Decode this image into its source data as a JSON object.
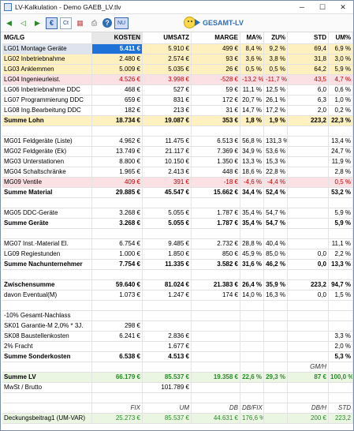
{
  "window": {
    "title": "LV-Kalkulation - Demo GAEB_LV.tlv",
    "minimize": "─",
    "maximize": "☐",
    "close": "✕"
  },
  "toolbar": {
    "nu_label": "NU",
    "gesamt_label": "GESAMT-LV",
    "icons": [
      "back-icon",
      "back2-icon",
      "forward-icon",
      "euro-icon",
      "ct-icon",
      "chart-icon",
      "print-icon",
      "help-icon",
      "nu-icon"
    ]
  },
  "header": [
    "MG/LG",
    "KOSTEN",
    "UMSATZ",
    "MARGE",
    "MA%",
    "ZU%",
    "STD",
    "UM%"
  ],
  "rows": [
    {
      "cls": "",
      "cells": [
        "LG01 Montage Geräte",
        "5.411 €",
        "5.910 €",
        "499 €",
        "8,4 %",
        "9,2 %",
        "69,4",
        "6,9 %"
      ],
      "sel": true
    },
    {
      "cls": "hi",
      "cells": [
        "LG02 Inbetriebnahme",
        "2.480 €",
        "2.574 €",
        "93 €",
        "3,6 %",
        "3,8 %",
        "31,8",
        "3,0 %"
      ]
    },
    {
      "cls": "hi",
      "cells": [
        "LG03 Anklemmen",
        "5.009 €",
        "5.035 €",
        "26 €",
        "0,5 %",
        "0,5 %",
        "64,2",
        "5,9 %"
      ]
    },
    {
      "cls": "red",
      "cells": [
        "LG04 Ingenieurleist.",
        "4.526 €",
        "3.998 €",
        "-528 €",
        "-13,2 %",
        "-11,7 %",
        "43,5",
        "4,7 %"
      ]
    },
    {
      "cls": "",
      "cells": [
        "LG06 Inbetriebnahme DDC",
        "468 €",
        "527 €",
        "59 €",
        "11,1 %",
        "12,5 %",
        "6,0",
        "0,6 %"
      ]
    },
    {
      "cls": "",
      "cells": [
        "LG07 Programmierung DDC",
        "659 €",
        "831 €",
        "172 €",
        "20,7 %",
        "26,1 %",
        "6,3",
        "1,0 %"
      ]
    },
    {
      "cls": "",
      "cells": [
        "LG08 Ing.Bearbeitung DDC",
        "182 €",
        "213 €",
        "31 €",
        "14,7 %",
        "17,2 %",
        "2,0",
        "0,2 %"
      ]
    },
    {
      "cls": "lohn bold",
      "cells": [
        "Summe Lohn",
        "18.734 €",
        "19.087 €",
        "353 €",
        "1,8 %",
        "1,9 %",
        "223,2",
        "22,3 %"
      ]
    },
    {
      "cls": "",
      "cells": [
        "",
        "",
        "",
        "",
        "",
        "",
        "",
        ""
      ]
    },
    {
      "cls": "",
      "cells": [
        "MG01 Feldgeräte (Liste)",
        "4.962 €",
        "11.475 €",
        "6.513 €",
        "56,8 %",
        "131,3 %",
        "",
        "13,4 %"
      ]
    },
    {
      "cls": "",
      "cells": [
        "MG02 Feldgeräte (Ek)",
        "13.749 €",
        "21.117 €",
        "7.369 €",
        "34,9 %",
        "53,6 %",
        "",
        "24,7 %"
      ]
    },
    {
      "cls": "",
      "cells": [
        "MG03 Unterstationen",
        "8.800 €",
        "10.150 €",
        "1.350 €",
        "13,3 %",
        "15,3 %",
        "",
        "11,9 %"
      ]
    },
    {
      "cls": "",
      "cells": [
        "MG04 Schaltschränke",
        "1.965 €",
        "2.413 €",
        "448 €",
        "18,6 %",
        "22,8 %",
        "",
        "2,8 %"
      ]
    },
    {
      "cls": "red",
      "cells": [
        "MG09 Ventile",
        "409 €",
        "391 €",
        "-18 €",
        "-4,6 %",
        "-4,4 %",
        "",
        "0,5 %"
      ]
    },
    {
      "cls": "bold",
      "cells": [
        "Summe Material",
        "29.885 €",
        "45.547 €",
        "15.662 €",
        "34,4 %",
        "52,4 %",
        "",
        "53,2 %"
      ]
    },
    {
      "cls": "",
      "cells": [
        "",
        "",
        "",
        "",
        "",
        "",
        "",
        ""
      ]
    },
    {
      "cls": "",
      "cells": [
        "MG05 DDC-Geräte",
        "3.268 €",
        "5.055 €",
        "1.787 €",
        "35,4 %",
        "54,7 %",
        "",
        "5,9 %"
      ]
    },
    {
      "cls": "bold",
      "cells": [
        "Summe Geräte",
        "3.268 €",
        "5.055 €",
        "1.787 €",
        "35,4 %",
        "54,7 %",
        "",
        "5,9 %"
      ]
    },
    {
      "cls": "",
      "cells": [
        "",
        "",
        "",
        "",
        "",
        "",
        "",
        ""
      ]
    },
    {
      "cls": "",
      "cells": [
        "MG07 Inst.-Material El.",
        "6.754 €",
        "9.485 €",
        "2.732 €",
        "28,8 %",
        "40,4 %",
        "",
        "11,1 %"
      ]
    },
    {
      "cls": "",
      "cells": [
        "LG09 Regiestunden",
        "1.000 €",
        "1.850 €",
        "850 €",
        "45,9 %",
        "85,0 %",
        "0,0",
        "2,2 %"
      ]
    },
    {
      "cls": "bold",
      "cells": [
        "Summe Nachunternehmer",
        "7.754 €",
        "11.335 €",
        "3.582 €",
        "31,6 %",
        "46,2 %",
        "0,0",
        "13,3 %"
      ]
    },
    {
      "cls": "",
      "cells": [
        "",
        "",
        "",
        "",
        "",
        "",
        "",
        ""
      ]
    },
    {
      "cls": "bold",
      "cells": [
        "Zwischensumme",
        "59.640 €",
        "81.024 €",
        "21.383 €",
        "26,4 %",
        "35,9 %",
        "223,2",
        "94,7 %"
      ]
    },
    {
      "cls": "",
      "cells": [
        "davon Eventual(M)",
        "1.073 €",
        "1.247 €",
        "174 €",
        "14,0 %",
        "16,3 %",
        "0,0",
        "1,5 %"
      ]
    },
    {
      "cls": "",
      "cells": [
        "",
        "",
        "",
        "",
        "",
        "",
        "",
        ""
      ]
    },
    {
      "cls": "",
      "cells": [
        "-10% Gesamt-Nachlass",
        "",
        "",
        "",
        "",
        "",
        "",
        ""
      ]
    },
    {
      "cls": "",
      "cells": [
        "SK01 Garantie-M 2,0% * 3J.",
        "298 €",
        "",
        "",
        "",
        "",
        "",
        ""
      ]
    },
    {
      "cls": "",
      "cells": [
        "SK08 Baustellenkosten",
        "6.241 €",
        "2.836 €",
        "",
        "",
        "",
        "",
        "3,3 %"
      ]
    },
    {
      "cls": "",
      "cells": [
        "2% Fracht",
        "",
        "1.677 €",
        "",
        "",
        "",
        "",
        "2,0 %"
      ]
    },
    {
      "cls": "bold",
      "cells": [
        "Summe Sonderkosten",
        "6.538 €",
        "4.513 €",
        "",
        "",
        "",
        "",
        "5,3 %"
      ]
    },
    {
      "cls": "italic",
      "cells": [
        "",
        "",
        "",
        "",
        "",
        "",
        "GM/H",
        ""
      ]
    },
    {
      "cls": "green bold",
      "cells": [
        "Summe LV",
        "66.179 €",
        "85.537 €",
        "19.358 €",
        "22,6 %",
        "29,3 %",
        "87 €",
        "100,0 %"
      ]
    },
    {
      "cls": "",
      "cells": [
        "MwSt / Brutto",
        "",
        "101.789 €",
        "",
        "",
        "",
        "",
        ""
      ]
    },
    {
      "cls": "",
      "cells": [
        "",
        "",
        "",
        "",
        "",
        "",
        "",
        ""
      ]
    },
    {
      "cls": "italic",
      "cells": [
        "",
        "FIX",
        "UM",
        "DB",
        "DB/FIX",
        "",
        "DB/H",
        "STD"
      ]
    },
    {
      "cls": "green",
      "cells": [
        "Deckungsbeitrag1 (UM-VAR)",
        "25.273 €",
        "85.537 €",
        "44.631 €",
        "176,6 %",
        "",
        "200 €",
        "223,2"
      ]
    }
  ]
}
